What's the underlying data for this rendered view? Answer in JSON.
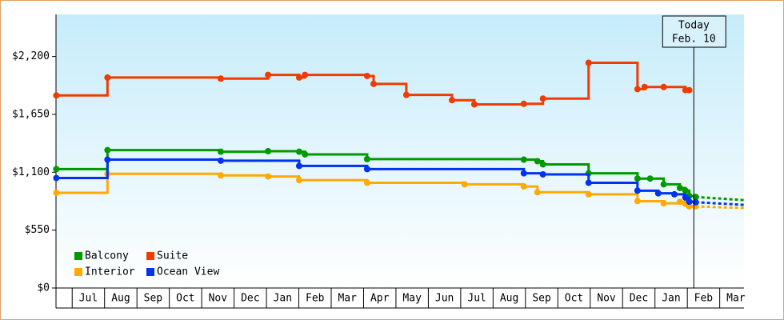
{
  "chart_data": {
    "type": "step-line",
    "ylim": [
      0,
      2600
    ],
    "yticks": [
      {
        "value": 0,
        "label": "$0"
      },
      {
        "value": 550,
        "label": "$550"
      },
      {
        "value": 1100,
        "label": "$1,100"
      },
      {
        "value": 1650,
        "label": "$1,650"
      },
      {
        "value": 2200,
        "label": "$2,200"
      }
    ],
    "xlim": [
      -0.5,
      20.75
    ],
    "xticks": [
      {
        "value": 0.5,
        "label": "Jul"
      },
      {
        "value": 1.5,
        "label": "Aug"
      },
      {
        "value": 2.5,
        "label": "Sep"
      },
      {
        "value": 3.5,
        "label": "Oct"
      },
      {
        "value": 4.5,
        "label": "Nov"
      },
      {
        "value": 5.5,
        "label": "Dec"
      },
      {
        "value": 6.5,
        "label": "Jan"
      },
      {
        "value": 7.5,
        "label": "Feb"
      },
      {
        "value": 8.5,
        "label": "Mar"
      },
      {
        "value": 9.5,
        "label": "Apr"
      },
      {
        "value": 10.5,
        "label": "May"
      },
      {
        "value": 11.5,
        "label": "Jun"
      },
      {
        "value": 12.5,
        "label": "Jul"
      },
      {
        "value": 13.5,
        "label": "Aug"
      },
      {
        "value": 14.5,
        "label": "Sep"
      },
      {
        "value": 15.5,
        "label": "Oct"
      },
      {
        "value": 16.5,
        "label": "Nov"
      },
      {
        "value": 17.5,
        "label": "Dec"
      },
      {
        "value": 18.5,
        "label": "Jan"
      },
      {
        "value": 19.5,
        "label": "Feb"
      },
      {
        "value": 20.5,
        "label": "Mar"
      }
    ],
    "series": [
      {
        "name": "Balcony",
        "color": "#009a00",
        "x": [
          -0.49,
          1.09,
          4.59,
          6.05,
          7.01,
          7.19,
          9.11,
          13.95,
          14.37,
          14.54,
          15.95,
          17.46,
          17.85,
          18.27,
          18.77,
          18.94,
          19.06,
          19.26
        ],
        "values": [
          1130,
          1310,
          1295,
          1300,
          1295,
          1270,
          1225,
          1220,
          1205,
          1175,
          1090,
          1040,
          1040,
          985,
          950,
          925,
          875,
          865
        ],
        "forecast": {
          "x": [
            19.26,
            20.75
          ],
          "values": [
            865,
            835
          ]
        }
      },
      {
        "name": "Suite",
        "color": "#f03c00",
        "x": [
          -0.49,
          1.09,
          4.59,
          6.05,
          7.01,
          7.19,
          9.11,
          9.31,
          10.32,
          11.73,
          12.42,
          13.95,
          14.54,
          15.95,
          17.46,
          17.68,
          18.27,
          18.94,
          19.06
        ],
        "values": [
          1830,
          2000,
          1990,
          2025,
          2000,
          2025,
          2015,
          1940,
          1835,
          1785,
          1745,
          1750,
          1800,
          2140,
          1890,
          1910,
          1910,
          1880,
          1880
        ]
      },
      {
        "name": "Interior",
        "color": "#ffaa00",
        "x": [
          -0.49,
          1.09,
          4.59,
          6.05,
          7.01,
          9.11,
          12.12,
          13.95,
          14.37,
          15.95,
          17.46,
          18.27,
          18.77,
          18.94,
          19.06,
          19.26
        ],
        "values": [
          905,
          1085,
          1070,
          1060,
          1025,
          1000,
          985,
          965,
          910,
          890,
          825,
          805,
          820,
          800,
          775,
          775
        ],
        "forecast": {
          "x": [
            19.26,
            20.75
          ],
          "values": [
            775,
            760
          ]
        }
      },
      {
        "name": "Ocean View",
        "color": "#0033ee",
        "x": [
          -0.49,
          1.09,
          4.59,
          7.01,
          9.11,
          13.95,
          14.54,
          15.95,
          17.46,
          18.1,
          18.6,
          18.94,
          19.06,
          19.26
        ],
        "values": [
          1045,
          1220,
          1210,
          1160,
          1130,
          1090,
          1080,
          1000,
          925,
          900,
          890,
          860,
          820,
          815
        ],
        "forecast": {
          "x": [
            19.26,
            20.75
          ],
          "values": [
            815,
            790
          ]
        }
      }
    ],
    "annotation": {
      "x": 19.2,
      "label": "Today",
      "date": "Feb. 10"
    }
  }
}
